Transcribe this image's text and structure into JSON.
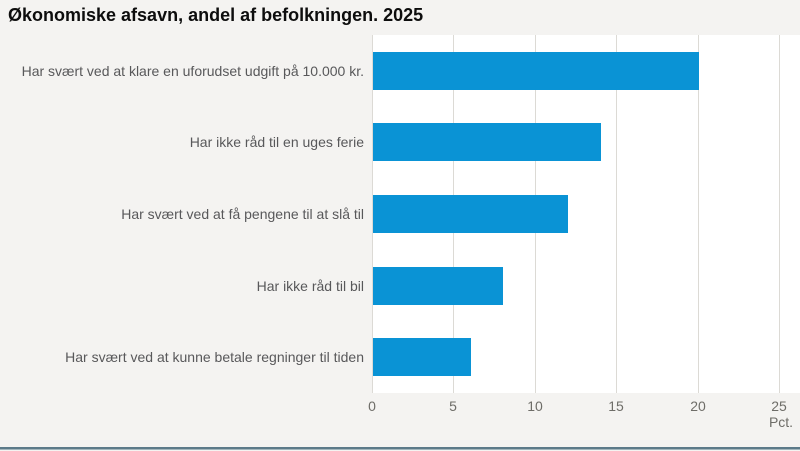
{
  "title": "Økonomiske afsavn, andel af befolkningen. 2025",
  "chart_data": {
    "type": "bar",
    "orientation": "horizontal",
    "title": "Økonomiske afsavn, andel af befolkningen. 2025",
    "categories": [
      "Har svært ved at klare en uforudset udgift på 10.000 kr.",
      "Har ikke råd til en uges ferie",
      "Har svært ved at få pengene til at slå til",
      "Har ikke råd til bil",
      "Har svært ved at kunne betale regninger til tiden"
    ],
    "values": [
      20,
      14,
      12,
      8,
      6
    ],
    "xlabel": "Pct.",
    "ylabel": "",
    "x_ticks": [
      0,
      5,
      10,
      15,
      20,
      25
    ],
    "xlim": [
      0,
      25
    ],
    "grid": true,
    "legend": false
  },
  "colors": {
    "bar": "#0a93d5",
    "page_background": "#f4f3f1",
    "plot_background": "#ffffff",
    "gridline": "#dcdad5",
    "category_text": "#58585a",
    "tick_text": "#6e6d68",
    "title_text": "#0d0d0d",
    "bottom_border_dark": "#5c7a89",
    "bottom_border_light": "#a2b5bc"
  }
}
